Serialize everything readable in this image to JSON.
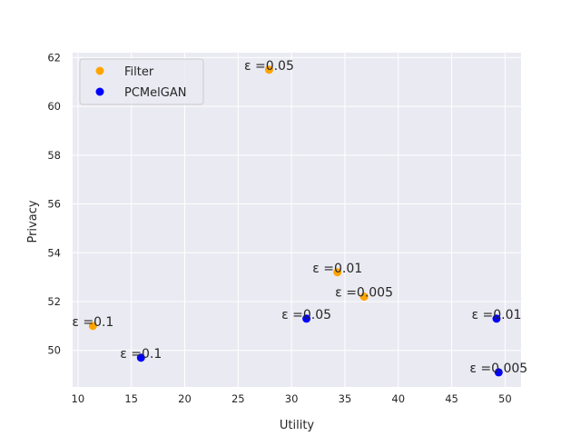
{
  "chart_data": {
    "type": "scatter",
    "title": "",
    "xlabel": "Utility",
    "ylabel": "Privacy",
    "xlim": [
      9.5,
      51.5
    ],
    "ylim": [
      48.5,
      62.2
    ],
    "xticks": [
      "10",
      "15",
      "20",
      "25",
      "30",
      "35",
      "40",
      "45",
      "50"
    ],
    "yticks": [
      "50",
      "52",
      "54",
      "56",
      "58",
      "60",
      "62"
    ],
    "grid": true,
    "legend_position": "top-left",
    "series": [
      {
        "name": "Filter",
        "color": "#ffa500",
        "points": [
          {
            "x": 27.9,
            "y": 61.5,
            "label": "ε =0.05"
          },
          {
            "x": 34.3,
            "y": 53.2,
            "label": "ε =0.01"
          },
          {
            "x": 36.8,
            "y": 52.2,
            "label": "ε =0.005"
          },
          {
            "x": 11.4,
            "y": 51.0,
            "label": "ε =0.1"
          }
        ]
      },
      {
        "name": "PCMelGAN",
        "color": "#0000ff",
        "points": [
          {
            "x": 31.4,
            "y": 51.3,
            "label": "ε =0.05"
          },
          {
            "x": 49.2,
            "y": 51.3,
            "label": "ε =0.01"
          },
          {
            "x": 15.9,
            "y": 49.7,
            "label": "ε =0.1"
          },
          {
            "x": 49.4,
            "y": 49.1,
            "label": "ε =0.005"
          }
        ]
      }
    ]
  }
}
